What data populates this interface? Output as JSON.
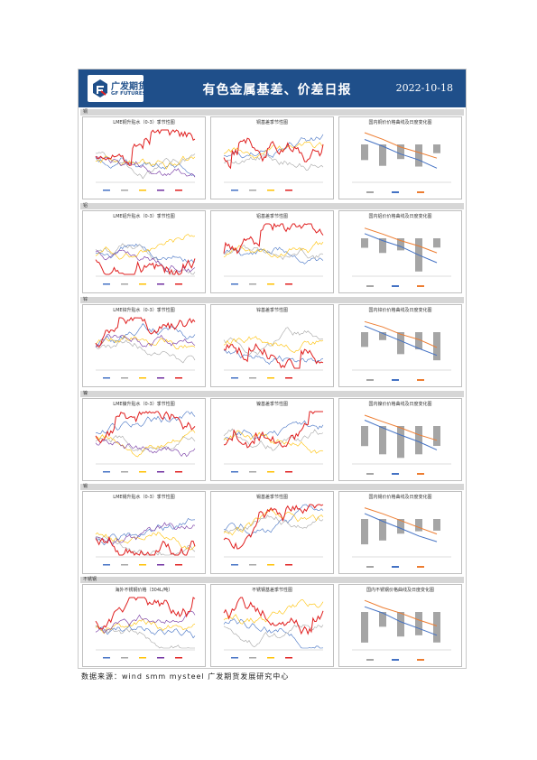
{
  "header": {
    "logo_cn": "广发期货",
    "logo_en": "GF FUTURES",
    "title": "有色金属基差、价差日报",
    "date": "2022-10-18",
    "brand_color": "#1f4f8a"
  },
  "sections": [
    {
      "label": "铜",
      "titles": [
        "LME铜升贴水（0-3）季节性图",
        "铜基差季节性图",
        "国内铜价价格曲线及日度变化图"
      ],
      "curve_kind": "bar-up"
    },
    {
      "label": "铝",
      "titles": [
        "LME铝升贴水（0-3）季节性图",
        "铝基差季节性图",
        "国内铝价价格曲线及日度变化图"
      ],
      "curve_kind": "bar-down"
    },
    {
      "label": "锌",
      "titles": [
        "LME锌升贴水（0-3）季节性图",
        "锌基差季节性图",
        "国内锌价价格曲线及日度变化图"
      ],
      "curve_kind": "bar-down"
    },
    {
      "label": "镍",
      "titles": [
        "LME镍升贴水（0-3）季节性图",
        "镍基差季节性图",
        "国内镍价价格曲线及日度变化图"
      ],
      "curve_kind": "bar-down"
    },
    {
      "label": "锡",
      "titles": [
        "LME锡升贴水（0-3）季节性图",
        "锡基差季节性图",
        "国内锡价价格曲线及日度变化图"
      ],
      "curve_kind": "bar-down"
    },
    {
      "label": "不锈钢",
      "titles": [
        "海外不锈钢价格（304L/吨）",
        "不锈钢基差季节性图",
        "国内不锈钢价格曲线及日度变化图"
      ],
      "curve_kind": "bar-down"
    }
  ],
  "series_colors": [
    "#4472c4",
    "#a5a5a5",
    "#ffc000",
    "#7030a0",
    "#e02020",
    "#ed7d31"
  ],
  "source": "数据来源：wind  smm  mysteel  广发期货发展研究中心"
}
